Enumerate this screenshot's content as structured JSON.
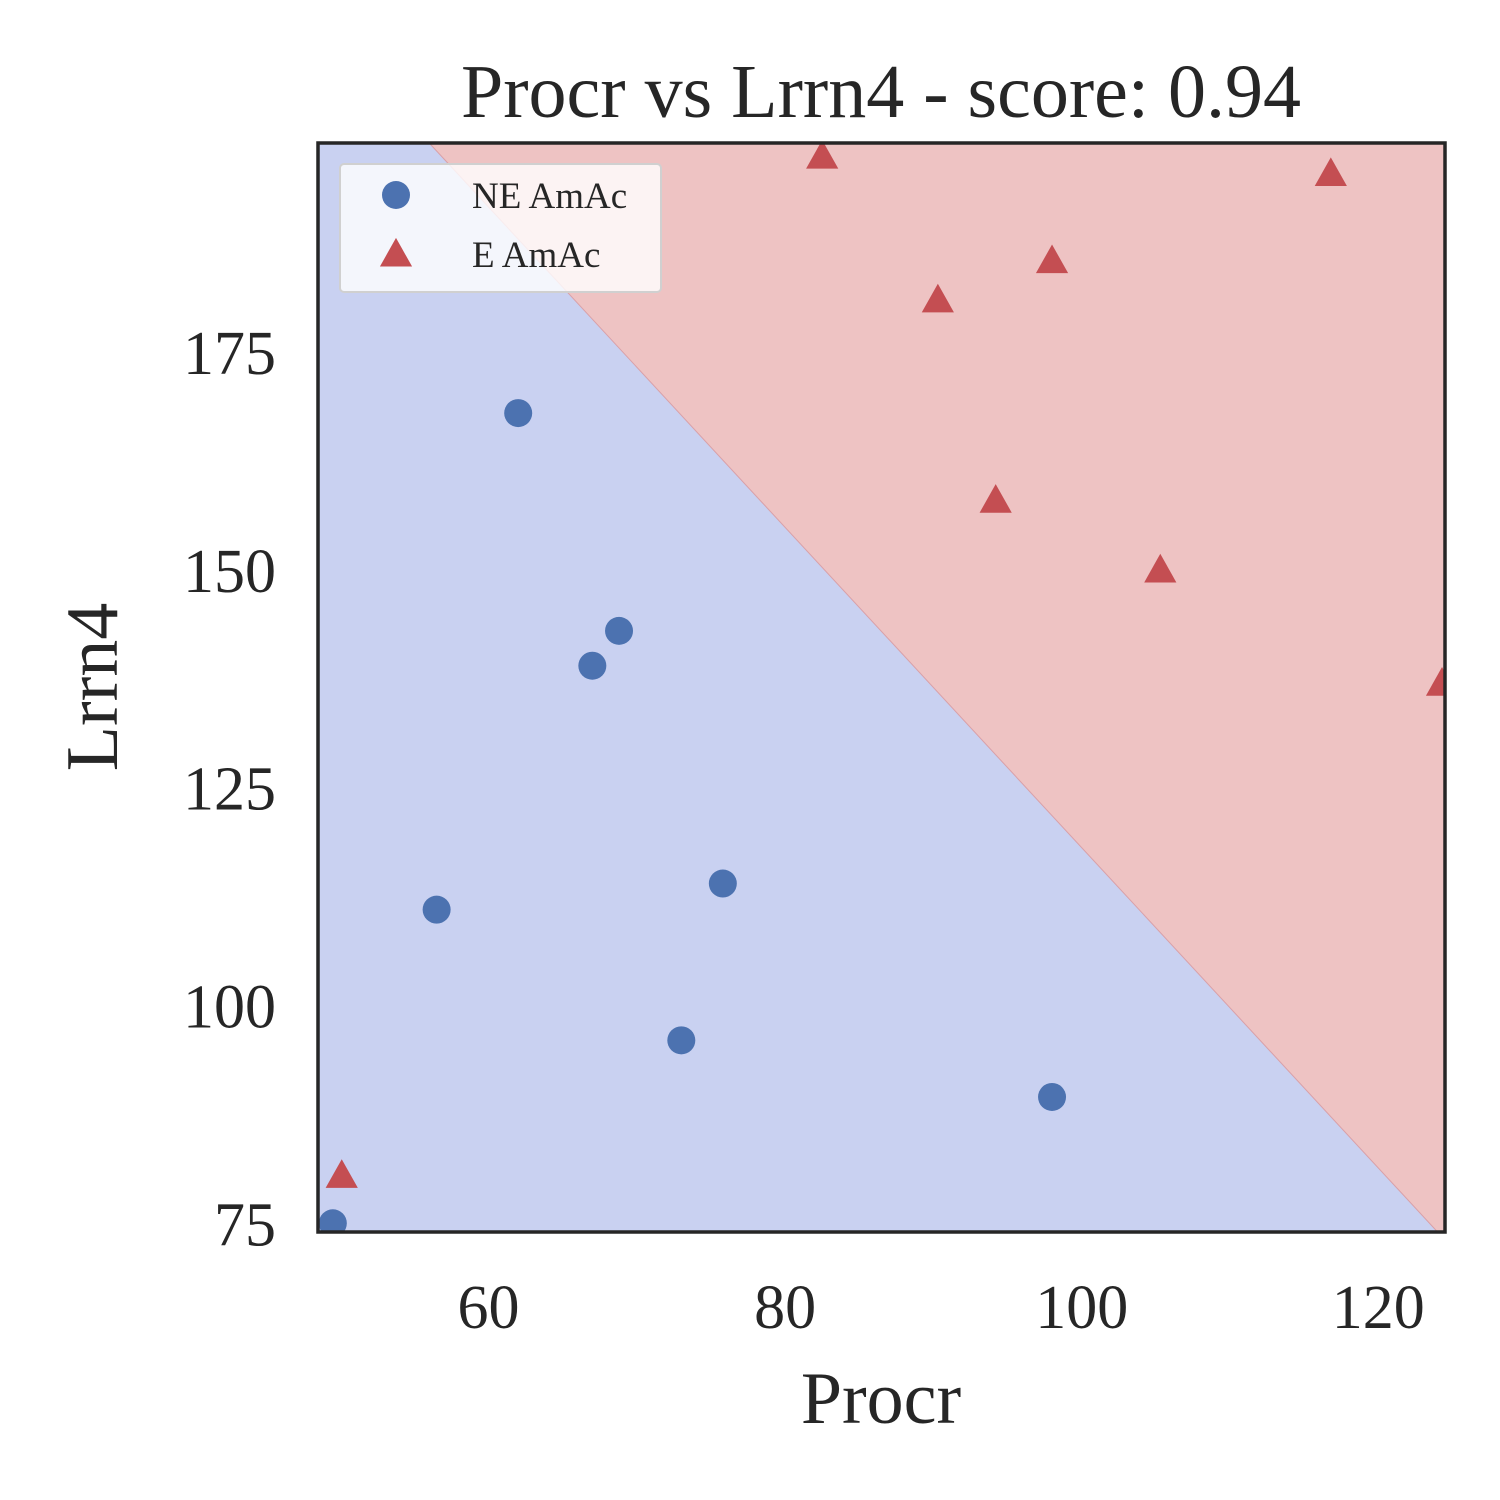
{
  "chart_data": {
    "type": "scatter",
    "title": "Procr vs Lrrn4 - score: 0.94",
    "xlabel": "Procr",
    "ylabel": "Lrrn4",
    "xlim": [
      48.5,
      124.5
    ],
    "ylim": [
      74,
      199
    ],
    "xticks": [
      60,
      80,
      100,
      120
    ],
    "yticks": [
      75,
      100,
      125,
      150,
      175
    ],
    "grid": false,
    "legend_position": "top-left",
    "decision_boundary": {
      "points": [
        [
          56,
          199
        ],
        [
          124,
          74
        ]
      ],
      "negative_region_color": "#c9d1f1",
      "positive_region_color": "#eec3c3"
    },
    "series": [
      {
        "name": "NE AmAc",
        "marker": "circle",
        "color": "#4c72b0",
        "points": [
          [
            62,
            168
          ],
          [
            67,
            139
          ],
          [
            68.8,
            143
          ],
          [
            56.5,
            111
          ],
          [
            75.8,
            114
          ],
          [
            73,
            96
          ],
          [
            98,
            89.5
          ],
          [
            49.5,
            75
          ]
        ]
      },
      {
        "name": "E AmAc",
        "marker": "triangle",
        "color": "#c44e52",
        "points": [
          [
            82.5,
            197.5
          ],
          [
            116.8,
            195.5
          ],
          [
            98,
            185.5
          ],
          [
            90.3,
            181
          ],
          [
            94.2,
            158
          ],
          [
            105.3,
            150
          ],
          [
            124.3,
            137
          ],
          [
            50.1,
            80.5
          ]
        ]
      }
    ]
  }
}
